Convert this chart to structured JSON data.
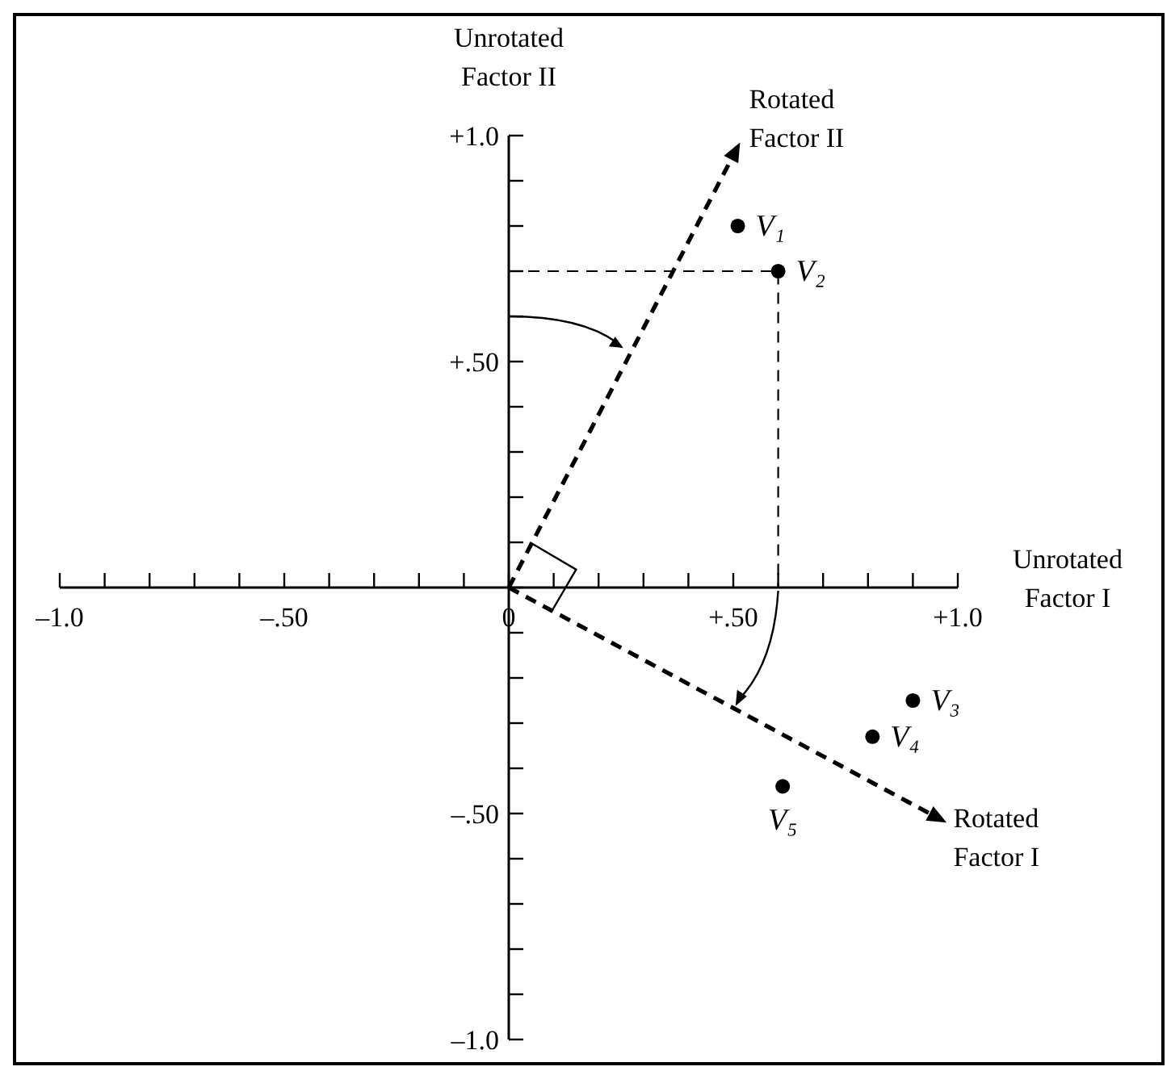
{
  "chart_data": {
    "type": "scatter",
    "xlabel": "Unrotated Factor I",
    "ylabel": "Unrotated Factor II",
    "xlim": [
      -1.0,
      1.0
    ],
    "ylim": [
      -1.0,
      1.0
    ],
    "xticks": [
      {
        "value": -1.0,
        "label": "–1.0"
      },
      {
        "value": -0.9,
        "label": null
      },
      {
        "value": -0.8,
        "label": null
      },
      {
        "value": -0.7,
        "label": null
      },
      {
        "value": -0.6,
        "label": null
      },
      {
        "value": -0.5,
        "label": "–.50"
      },
      {
        "value": -0.4,
        "label": null
      },
      {
        "value": -0.3,
        "label": null
      },
      {
        "value": -0.2,
        "label": null
      },
      {
        "value": -0.1,
        "label": null
      },
      {
        "value": 0,
        "label": "0"
      },
      {
        "value": 0.1,
        "label": null
      },
      {
        "value": 0.2,
        "label": null
      },
      {
        "value": 0.3,
        "label": null
      },
      {
        "value": 0.4,
        "label": null
      },
      {
        "value": 0.5,
        "label": "+.50"
      },
      {
        "value": 0.6,
        "label": null
      },
      {
        "value": 0.7,
        "label": null
      },
      {
        "value": 0.8,
        "label": null
      },
      {
        "value": 0.9,
        "label": null
      },
      {
        "value": 1.0,
        "label": "+1.0"
      }
    ],
    "yticks": [
      {
        "value": -1.0,
        "label": "–1.0"
      },
      {
        "value": -0.9,
        "label": null
      },
      {
        "value": -0.8,
        "label": null
      },
      {
        "value": -0.7,
        "label": null
      },
      {
        "value": -0.6,
        "label": null
      },
      {
        "value": -0.5,
        "label": "–.50"
      },
      {
        "value": -0.4,
        "label": null
      },
      {
        "value": -0.3,
        "label": null
      },
      {
        "value": -0.2,
        "label": null
      },
      {
        "value": -0.1,
        "label": null
      },
      {
        "value": 0,
        "label": null
      },
      {
        "value": 0.1,
        "label": null
      },
      {
        "value": 0.2,
        "label": null
      },
      {
        "value": 0.3,
        "label": null
      },
      {
        "value": 0.4,
        "label": null
      },
      {
        "value": 0.5,
        "label": "+.50"
      },
      {
        "value": 0.6,
        "label": null
      },
      {
        "value": 0.7,
        "label": null
      },
      {
        "value": 0.8,
        "label": null
      },
      {
        "value": 0.9,
        "label": null
      },
      {
        "value": 1.0,
        "label": "+1.0"
      }
    ],
    "marker": "circle",
    "series": [
      {
        "color": "#000000",
        "x": [
          0.51,
          0.6,
          0.9,
          0.81,
          0.61
        ],
        "values": [
          0.8,
          0.7,
          -0.25,
          -0.33,
          -0.44
        ]
      },
      {
        "type": "line",
        "color": "#000000",
        "marker": "none",
        "line_style": "dashed",
        "x": [
          0,
          0.6,
          0.6
        ],
        "values": [
          0.7,
          0.7,
          0
        ]
      }
    ],
    "annotations": [
      {
        "text": "V₁",
        "x": 0.51,
        "y": 0.8
      },
      {
        "text": "V₂",
        "x": 0.6,
        "y": 0.7
      },
      {
        "text": "V₃",
        "x": 0.9,
        "y": -0.25
      },
      {
        "text": "V₄",
        "x": 0.81,
        "y": -0.33
      },
      {
        "text": "V₅",
        "x": 0.61,
        "y": -0.44
      },
      "Rotated Factor II",
      "Rotated Factor I"
    ]
  }
}
